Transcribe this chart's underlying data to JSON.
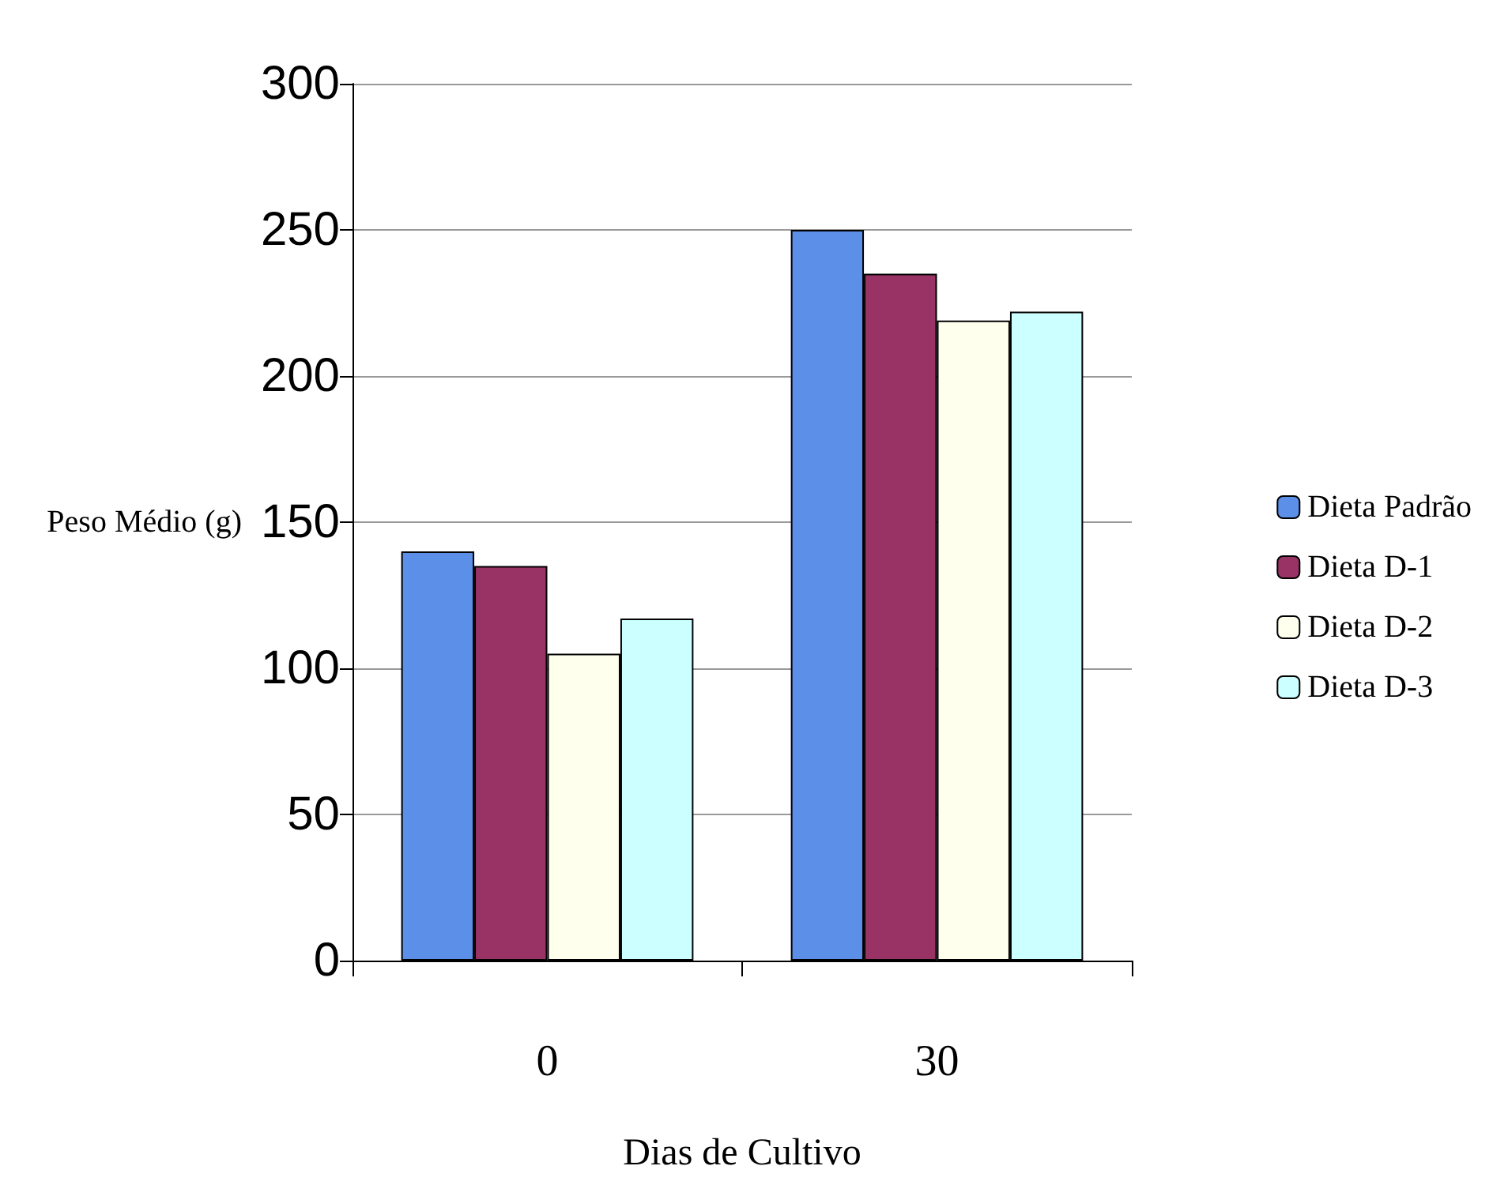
{
  "chart_data": {
    "type": "bar",
    "xlabel": "Dias de Cultivo",
    "ylabel": "Peso Médio (g)",
    "categories": [
      "0",
      "30"
    ],
    "series": [
      {
        "name": "Dieta Padrão",
        "color": "#5b8fe8",
        "values": [
          140,
          250
        ]
      },
      {
        "name": "Dieta D-1",
        "color": "#993366",
        "values": [
          135,
          235
        ]
      },
      {
        "name": "Dieta D-2",
        "color": "#ffffee",
        "values": [
          105,
          219
        ]
      },
      {
        "name": "Dieta D-3",
        "color": "#ccffff",
        "values": [
          117,
          222
        ]
      }
    ],
    "ylim": [
      0,
      300
    ],
    "yticks": [
      0,
      50,
      100,
      150,
      200,
      250,
      300
    ],
    "grid": "y",
    "legend": "right"
  }
}
